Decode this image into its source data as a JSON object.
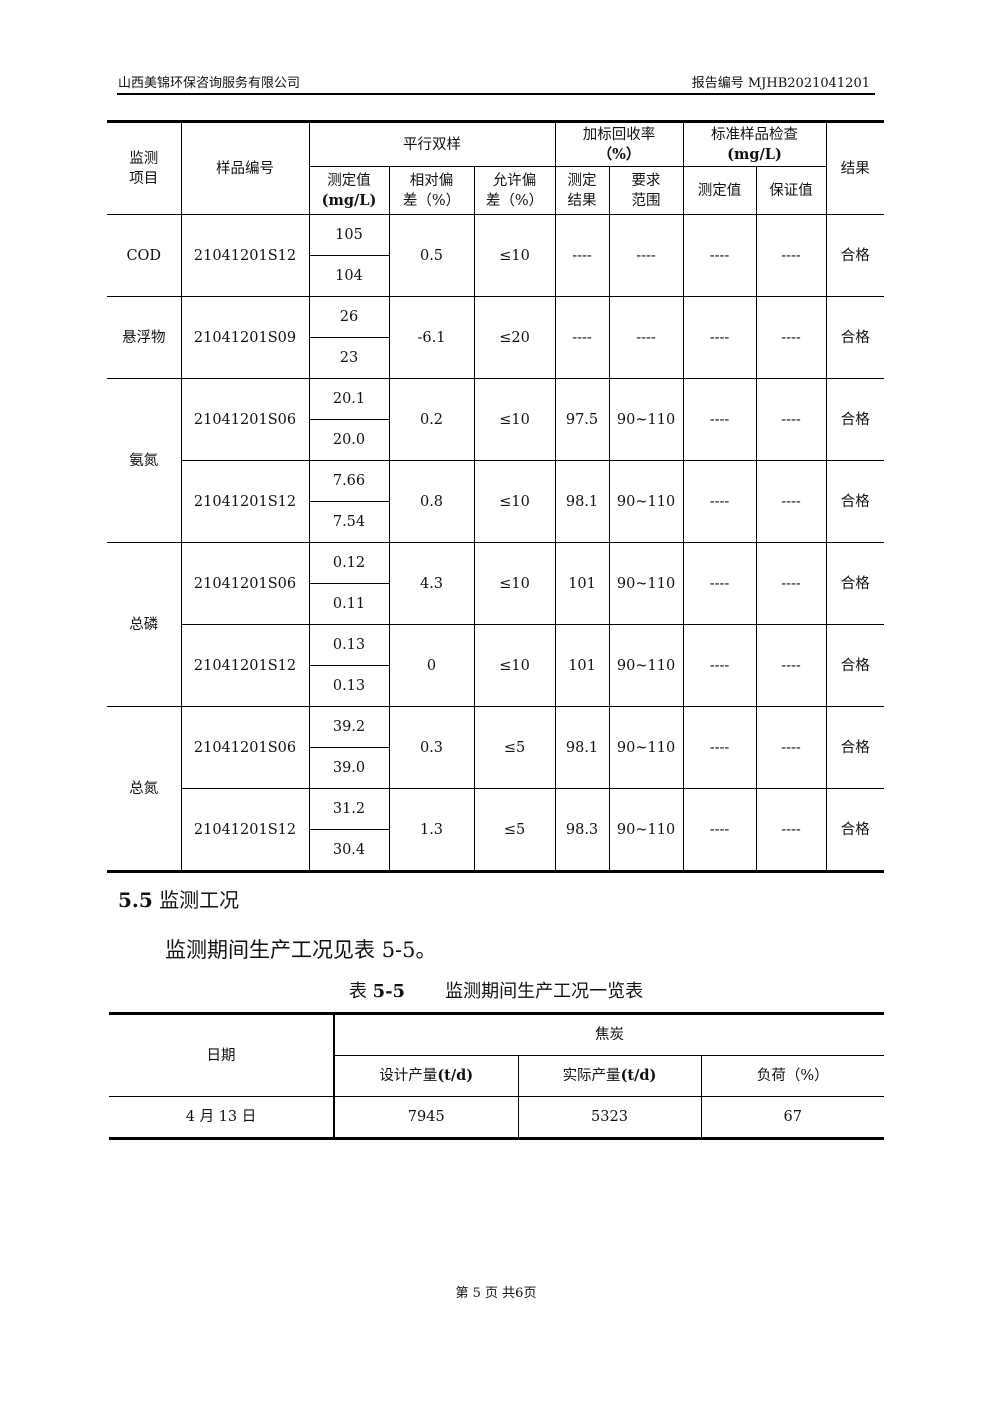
{
  "header": {
    "company": "山西美锦环保咨询服务有限公司",
    "report_no_label": "报告编号",
    "report_no": "MJHB2021041201"
  },
  "table1": {
    "headers": {
      "item": "监测项目",
      "item_l1": "监测",
      "item_l2": "项目",
      "sample": "样品编号",
      "parallel": "平行双样",
      "measured": "测定值",
      "measured_unit": "(mg/L)",
      "rel_dev_l1": "相对偏",
      "rel_dev_l2": "差（%）",
      "allow_dev_l1": "允许偏",
      "allow_dev_l2": "差（%）",
      "recovery_l1": "加标回收率",
      "recovery_l2": "（%）",
      "rec_result_l1": "测定",
      "rec_result_l2": "结果",
      "rec_range_l1": "要求",
      "rec_range_l2": "范围",
      "std_l1": "标准样品检查",
      "std_l2": "(mg/L)",
      "std_measured": "测定值",
      "std_guarantee": "保证值",
      "result": "结果"
    },
    "groups": [
      {
        "item": "COD",
        "rows": [
          {
            "sample": "21041201S12",
            "values": [
              "105",
              "104"
            ],
            "rel_dev": "0.5",
            "allow": "≤10",
            "rec": "----",
            "range": "----",
            "std_m": "----",
            "std_g": "----",
            "result": "合格"
          }
        ]
      },
      {
        "item": "悬浮物",
        "rows": [
          {
            "sample": "21041201S09",
            "values": [
              "26",
              "23"
            ],
            "rel_dev": "-6.1",
            "allow": "≤20",
            "rec": "----",
            "range": "----",
            "std_m": "----",
            "std_g": "----",
            "result": "合格"
          }
        ]
      },
      {
        "item": "氨氮",
        "rows": [
          {
            "sample": "21041201S06",
            "values": [
              "20.1",
              "20.0"
            ],
            "rel_dev": "0.2",
            "allow": "≤10",
            "rec": "97.5",
            "range": "90~110",
            "std_m": "----",
            "std_g": "----",
            "result": "合格"
          },
          {
            "sample": "21041201S12",
            "values": [
              "7.66",
              "7.54"
            ],
            "rel_dev": "0.8",
            "allow": "≤10",
            "rec": "98.1",
            "range": "90~110",
            "std_m": "----",
            "std_g": "----",
            "result": "合格"
          }
        ]
      },
      {
        "item": "总磷",
        "rows": [
          {
            "sample": "21041201S06",
            "values": [
              "0.12",
              "0.11"
            ],
            "rel_dev": "4.3",
            "allow": "≤10",
            "rec": "101",
            "range": "90~110",
            "std_m": "----",
            "std_g": "----",
            "result": "合格"
          },
          {
            "sample": "21041201S12",
            "values": [
              "0.13",
              "0.13"
            ],
            "rel_dev": "0",
            "allow": "≤10",
            "rec": "101",
            "range": "90~110",
            "std_m": "----",
            "std_g": "----",
            "result": "合格"
          }
        ]
      },
      {
        "item": "总氮",
        "rows": [
          {
            "sample": "21041201S06",
            "values": [
              "39.2",
              "39.0"
            ],
            "rel_dev": "0.3",
            "allow": "≤5",
            "rec": "98.1",
            "range": "90~110",
            "std_m": "----",
            "std_g": "----",
            "result": "合格"
          },
          {
            "sample": "21041201S12",
            "values": [
              "31.2",
              "30.4"
            ],
            "rel_dev": "1.3",
            "allow": "≤5",
            "rec": "98.3",
            "range": "90~110",
            "std_m": "----",
            "std_g": "----",
            "result": "合格"
          }
        ]
      }
    ]
  },
  "section": {
    "number": "5.5",
    "title": "监测工况"
  },
  "paragraph": {
    "text": "监测期间生产工况见表",
    "ref": "5-5",
    "end": "。"
  },
  "caption": {
    "label": "表",
    "number": "5-5",
    "title": "监测期间生产工况一览表"
  },
  "table2": {
    "date_header": "日期",
    "group_header": "焦炭",
    "cols": [
      "设计产量",
      "实际产量",
      "负荷（%）"
    ],
    "unit": "(t/d)",
    "row": {
      "date": "4 月 13 日",
      "design": "7945",
      "actual": "5323",
      "load": "67"
    }
  },
  "footer": {
    "text": "第 5 页 共6页"
  }
}
